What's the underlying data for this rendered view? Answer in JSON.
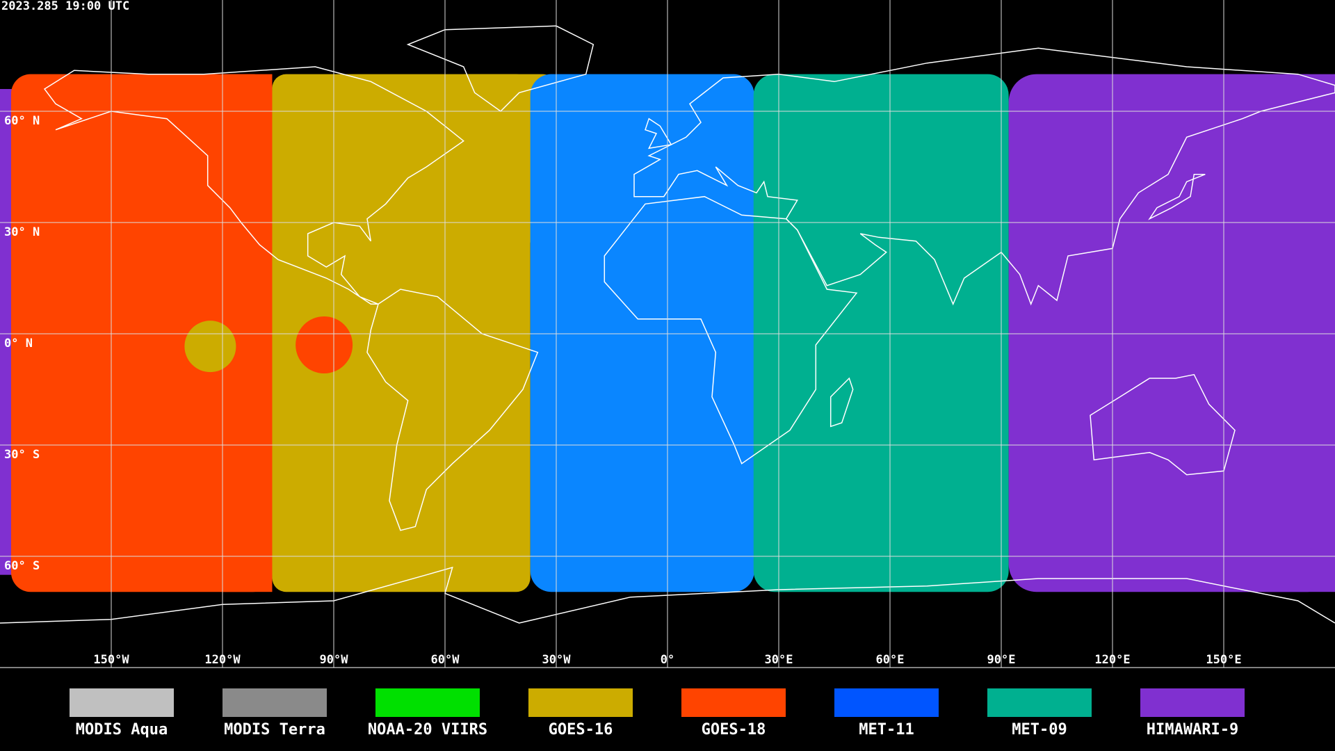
{
  "header": {
    "timestamp": "2023.285 19:00 UTC"
  },
  "map": {
    "lat_labels": [
      "60° N",
      "30° N",
      "0° N",
      "30° S",
      "60° S"
    ],
    "lon_labels": [
      "150°W",
      "120°W",
      "90°W",
      "60°W",
      "30°W",
      "0°",
      "30°E",
      "60°E",
      "90°E",
      "120°E",
      "150°E"
    ]
  },
  "legend": {
    "items": [
      {
        "label": "MODIS Aqua",
        "color": "#c0c0c0"
      },
      {
        "label": "MODIS Terra",
        "color": "#8a8a8a"
      },
      {
        "label": "NOAA-20 VIIRS",
        "color": "#00e000"
      },
      {
        "label": "GOES-16",
        "color": "#ccac00"
      },
      {
        "label": "GOES-18",
        "color": "#ff4400"
      },
      {
        "label": "MET-11",
        "color": "#0055ff"
      },
      {
        "label": "MET-09",
        "color": "#00b090"
      },
      {
        "label": "HIMAWARI-9",
        "color": "#8030d0"
      }
    ]
  }
}
